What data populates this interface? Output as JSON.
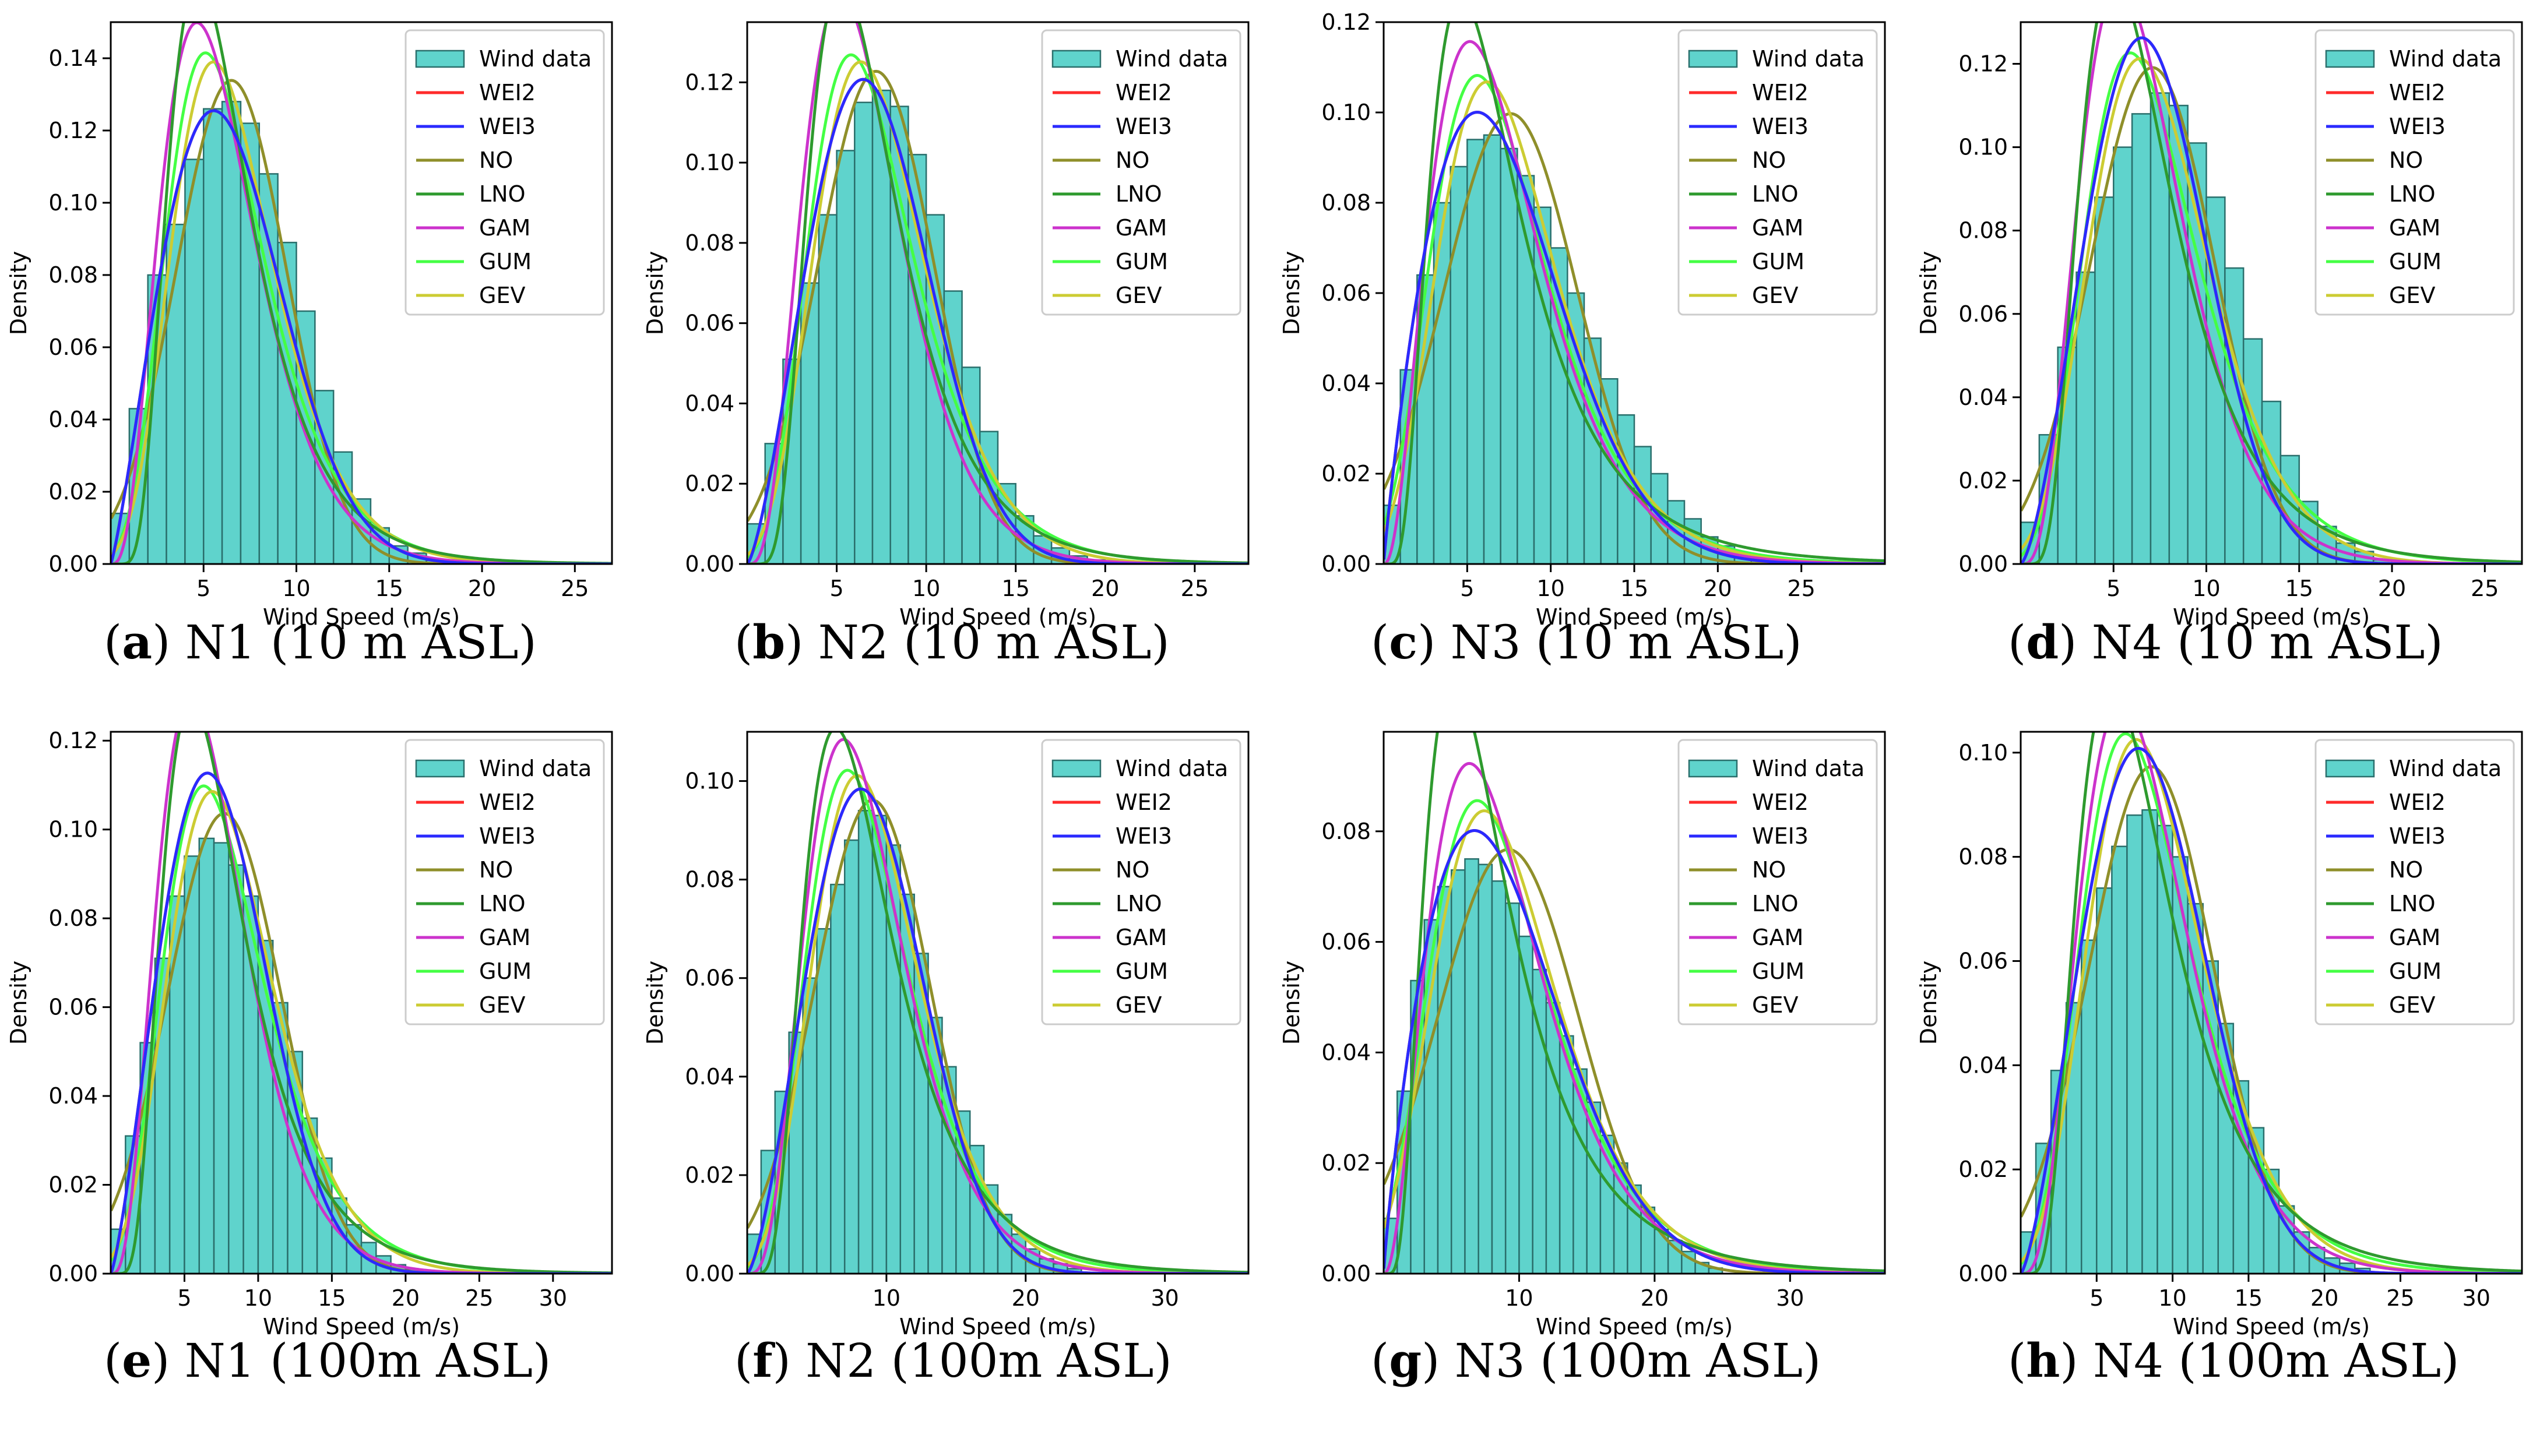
{
  "figure": {
    "xlabel": "Wind Speed (m/s)",
    "ylabel": "Density",
    "legend_entries": [
      "Wind data",
      "WEI2",
      "WEI3",
      "NO",
      "LNO",
      "GAM",
      "GUM",
      "GEV"
    ],
    "colors": {
      "hist_fill": "#5fd3cc",
      "hist_edge": "#2a6f6c",
      "WEI2": "#ff2a2a",
      "WEI3": "#2a2aff",
      "NO": "#8f8f2a",
      "LNO": "#2e9a2e",
      "GAM": "#cc33cc",
      "GUM": "#44ff44",
      "GEV": "#cccc33"
    }
  },
  "chart_data": [
    {
      "type": "bar",
      "panel_letter": "a",
      "caption_rest": " N1 (10 m ASL)",
      "xlim": [
        0,
        27
      ],
      "ylim": [
        0,
        0.15
      ],
      "xticks": [
        5,
        10,
        15,
        20,
        25
      ],
      "yticks": [
        "0.00",
        "0.02",
        "0.04",
        "0.06",
        "0.08",
        "0.10",
        "0.12",
        "0.14"
      ],
      "yvals": [
        0,
        0.02,
        0.04,
        0.06,
        0.08,
        0.1,
        0.12,
        0.14
      ],
      "legend": "top-right",
      "hist": {
        "bin_width": 1,
        "start": 0,
        "values": [
          0.014,
          0.043,
          0.08,
          0.094,
          0.112,
          0.126,
          0.128,
          0.122,
          0.108,
          0.089,
          0.07,
          0.048,
          0.031,
          0.018,
          0.01,
          0.005,
          0.003,
          0.001,
          0.0005
        ]
      },
      "curves": {
        "WEI2": {
          "dist": "weibull",
          "k": 2.2,
          "c": 7.3
        },
        "WEI3": {
          "dist": "weibull",
          "k": 2.2,
          "c": 7.3
        },
        "NO": {
          "dist": "normal",
          "mu": 6.5,
          "sigma": 2.98
        },
        "LNO": {
          "dist": "lognormal",
          "mu": 1.77,
          "sigma": 0.47
        },
        "GAM": {
          "dist": "gamma",
          "k": 4.2,
          "theta": 1.45
        },
        "GUM": {
          "dist": "gumbel",
          "mu": 5.1,
          "beta": 2.6
        },
        "GEV": {
          "dist": "gev",
          "mu": 5.4,
          "sigma": 2.65,
          "xi": -0.05
        }
      }
    },
    {
      "type": "bar",
      "panel_letter": "b",
      "caption_rest": " N2 (10 m ASL)",
      "xlim": [
        0,
        28
      ],
      "ylim": [
        0,
        0.135
      ],
      "xticks": [
        5,
        10,
        15,
        20,
        25
      ],
      "yticks": [
        "0.00",
        "0.02",
        "0.04",
        "0.06",
        "0.08",
        "0.10",
        "0.12"
      ],
      "yvals": [
        0,
        0.02,
        0.04,
        0.06,
        0.08,
        0.1,
        0.12
      ],
      "legend": "top-right",
      "hist": {
        "bin_width": 1,
        "start": 0,
        "values": [
          0.01,
          0.03,
          0.051,
          0.07,
          0.087,
          0.103,
          0.115,
          0.118,
          0.114,
          0.102,
          0.087,
          0.068,
          0.049,
          0.033,
          0.02,
          0.012,
          0.007,
          0.004,
          0.002,
          0.001
        ]
      },
      "curves": {
        "WEI2": {
          "dist": "weibull",
          "k": 2.4,
          "c": 8.1
        },
        "WEI3": {
          "dist": "weibull",
          "k": 2.4,
          "c": 8.1
        },
        "NO": {
          "dist": "normal",
          "mu": 7.2,
          "sigma": 3.25
        },
        "LNO": {
          "dist": "lognormal",
          "mu": 1.88,
          "sigma": 0.47
        },
        "GAM": {
          "dist": "gamma",
          "k": 4.6,
          "theta": 1.45
        },
        "GUM": {
          "dist": "gumbel",
          "mu": 5.8,
          "beta": 2.9
        },
        "GEV": {
          "dist": "gev",
          "mu": 6.1,
          "sigma": 2.95,
          "xi": -0.08
        }
      }
    },
    {
      "type": "bar",
      "panel_letter": "c",
      "caption_rest": " N3 (10 m ASL)",
      "xlim": [
        0,
        30
      ],
      "ylim": [
        0,
        0.12
      ],
      "xticks": [
        5,
        10,
        15,
        20,
        25
      ],
      "yticks": [
        "0.00",
        "0.02",
        "0.04",
        "0.06",
        "0.08",
        "0.10",
        "0.12"
      ],
      "yvals": [
        0,
        0.02,
        0.04,
        0.06,
        0.08,
        0.1,
        0.12
      ],
      "legend": "top-right",
      "hist": {
        "bin_width": 1,
        "start": 0,
        "values": [
          0.013,
          0.043,
          0.064,
          0.08,
          0.088,
          0.094,
          0.095,
          0.092,
          0.086,
          0.079,
          0.07,
          0.06,
          0.05,
          0.041,
          0.033,
          0.026,
          0.02,
          0.014,
          0.01,
          0.006,
          0.004,
          0.002,
          0.001
        ]
      },
      "curves": {
        "WEI2": {
          "dist": "weibull",
          "k": 1.9,
          "c": 8.3
        },
        "WEI3": {
          "dist": "weibull",
          "k": 1.9,
          "c": 8.3
        },
        "NO": {
          "dist": "normal",
          "mu": 7.6,
          "sigma": 4.0
        },
        "LNO": {
          "dist": "lognormal",
          "mu": 1.87,
          "sigma": 0.58
        },
        "GAM": {
          "dist": "gamma",
          "k": 3.4,
          "theta": 2.15
        },
        "GUM": {
          "dist": "gumbel",
          "mu": 5.6,
          "beta": 3.4
        },
        "GEV": {
          "dist": "gev",
          "mu": 6.0,
          "sigma": 3.45,
          "xi": -0.05
        }
      }
    },
    {
      "type": "bar",
      "panel_letter": "d",
      "caption_rest": " N4 (10 m ASL)",
      "xlim": [
        0,
        27
      ],
      "ylim": [
        0,
        0.13
      ],
      "xticks": [
        5,
        10,
        15,
        20,
        25
      ],
      "yticks": [
        "0.00",
        "0.02",
        "0.04",
        "0.06",
        "0.08",
        "0.10",
        "0.12"
      ],
      "yvals": [
        0,
        0.02,
        0.04,
        0.06,
        0.08,
        0.1,
        0.12
      ],
      "legend": "top-right",
      "hist": {
        "bin_width": 1,
        "start": 0,
        "values": [
          0.01,
          0.031,
          0.052,
          0.07,
          0.088,
          0.1,
          0.108,
          0.113,
          0.11,
          0.101,
          0.088,
          0.071,
          0.054,
          0.039,
          0.026,
          0.015,
          0.009,
          0.005,
          0.003,
          0.001
        ]
      },
      "curves": {
        "WEI2": {
          "dist": "weibull",
          "k": 2.5,
          "c": 8.0
        },
        "WEI3": {
          "dist": "weibull",
          "k": 2.5,
          "c": 8.0
        },
        "NO": {
          "dist": "normal",
          "mu": 7.1,
          "sigma": 3.35
        },
        "LNO": {
          "dist": "lognormal",
          "mu": 1.86,
          "sigma": 0.5
        },
        "GAM": {
          "dist": "gamma",
          "k": 4.6,
          "theta": 1.48
        },
        "GUM": {
          "dist": "gumbel",
          "mu": 5.9,
          "beta": 3.0
        },
        "GEV": {
          "dist": "gev",
          "mu": 6.1,
          "sigma": 3.05,
          "xi": -0.1
        }
      }
    },
    {
      "type": "bar",
      "panel_letter": "e",
      "caption_rest": " N1 (100m ASL)",
      "xlim": [
        0,
        34
      ],
      "ylim": [
        0,
        0.122
      ],
      "xticks": [
        5,
        10,
        15,
        20,
        25,
        30
      ],
      "yticks": [
        "0.00",
        "0.02",
        "0.04",
        "0.06",
        "0.08",
        "0.10",
        "0.12"
      ],
      "yvals": [
        0,
        0.02,
        0.04,
        0.06,
        0.08,
        0.1,
        0.12
      ],
      "legend": "top-right",
      "hist": {
        "bin_width": 1,
        "start": 0,
        "values": [
          0.01,
          0.031,
          0.052,
          0.071,
          0.085,
          0.094,
          0.098,
          0.097,
          0.092,
          0.085,
          0.075,
          0.061,
          0.05,
          0.035,
          0.026,
          0.017,
          0.011,
          0.007,
          0.004,
          0.002,
          0.001,
          0.0005
        ]
      },
      "curves": {
        "WEI2": {
          "dist": "weibull",
          "k": 2.3,
          "c": 8.4
        },
        "WEI3": {
          "dist": "weibull",
          "k": 2.3,
          "c": 8.4
        },
        "NO": {
          "dist": "normal",
          "mu": 7.7,
          "sigma": 3.85
        },
        "LNO": {
          "dist": "lognormal",
          "mu": 1.95,
          "sigma": 0.5
        },
        "GAM": {
          "dist": "gamma",
          "k": 4.3,
          "theta": 1.65
        },
        "GUM": {
          "dist": "gumbel",
          "mu": 6.3,
          "beta": 3.35
        },
        "GEV": {
          "dist": "gev",
          "mu": 6.6,
          "sigma": 3.4,
          "xi": -0.08
        }
      }
    },
    {
      "type": "bar",
      "panel_letter": "f",
      "caption_rest": " N2 (100m ASL)",
      "xlim": [
        0,
        36
      ],
      "ylim": [
        0,
        0.11
      ],
      "xticks": [
        10,
        20,
        30
      ],
      "yticks": [
        "0.00",
        "0.02",
        "0.04",
        "0.06",
        "0.08",
        "0.10"
      ],
      "yvals": [
        0,
        0.02,
        0.04,
        0.06,
        0.08,
        0.1
      ],
      "legend": "top-right",
      "hist": {
        "bin_width": 1,
        "start": 0,
        "values": [
          0.008,
          0.025,
          0.037,
          0.049,
          0.06,
          0.07,
          0.079,
          0.088,
          0.094,
          0.093,
          0.087,
          0.077,
          0.065,
          0.052,
          0.042,
          0.033,
          0.026,
          0.018,
          0.012,
          0.008,
          0.005,
          0.003,
          0.002,
          0.001
        ]
      },
      "curves": {
        "WEI2": {
          "dist": "weibull",
          "k": 2.45,
          "c": 10.1
        },
        "WEI3": {
          "dist": "weibull",
          "k": 2.45,
          "c": 10.1
        },
        "NO": {
          "dist": "normal",
          "mu": 9.0,
          "sigma": 4.15
        },
        "LNO": {
          "dist": "lognormal",
          "mu": 2.1,
          "sigma": 0.5
        },
        "GAM": {
          "dist": "gamma",
          "k": 4.7,
          "theta": 1.87
        },
        "GUM": {
          "dist": "gumbel",
          "mu": 7.2,
          "beta": 3.6
        },
        "GEV": {
          "dist": "gev",
          "mu": 7.6,
          "sigma": 3.65,
          "xi": -0.08
        }
      }
    },
    {
      "type": "bar",
      "panel_letter": "g",
      "caption_rest": " N3 (100m ASL)",
      "xlim": [
        0,
        37
      ],
      "ylim": [
        0,
        0.098
      ],
      "xticks": [
        10,
        20,
        30
      ],
      "yticks": [
        "0.00",
        "0.02",
        "0.04",
        "0.06",
        "0.08"
      ],
      "yvals": [
        0,
        0.02,
        0.04,
        0.06,
        0.08
      ],
      "legend": "top-right",
      "hist": {
        "bin_width": 1,
        "start": 0,
        "values": [
          0.01,
          0.033,
          0.053,
          0.064,
          0.07,
          0.073,
          0.075,
          0.074,
          0.071,
          0.067,
          0.061,
          0.055,
          0.049,
          0.043,
          0.037,
          0.031,
          0.025,
          0.02,
          0.016,
          0.012,
          0.008,
          0.006,
          0.004,
          0.002,
          0.001
        ]
      },
      "curves": {
        "WEI2": {
          "dist": "weibull",
          "k": 1.85,
          "c": 10.2
        },
        "WEI3": {
          "dist": "weibull",
          "k": 1.85,
          "c": 10.2
        },
        "NO": {
          "dist": "normal",
          "mu": 9.2,
          "sigma": 5.2
        },
        "LNO": {
          "dist": "lognormal",
          "mu": 2.0,
          "sigma": 0.6
        },
        "GAM": {
          "dist": "gamma",
          "k": 3.3,
          "theta": 2.75
        },
        "GUM": {
          "dist": "gumbel",
          "mu": 6.9,
          "beta": 4.3
        },
        "GEV": {
          "dist": "gev",
          "mu": 7.2,
          "sigma": 4.4,
          "xi": -0.05
        }
      }
    },
    {
      "type": "bar",
      "panel_letter": "h",
      "caption_rest": " N4 (100m ASL)",
      "xlim": [
        0,
        33
      ],
      "ylim": [
        0,
        0.104
      ],
      "xticks": [
        5,
        10,
        15,
        20,
        25,
        30
      ],
      "yticks": [
        "0.00",
        "0.02",
        "0.04",
        "0.06",
        "0.08",
        "0.10"
      ],
      "yvals": [
        0,
        0.02,
        0.04,
        0.06,
        0.08,
        0.1
      ],
      "legend": "top-right",
      "hist": {
        "bin_width": 1,
        "start": 0,
        "values": [
          0.008,
          0.025,
          0.039,
          0.052,
          0.064,
          0.074,
          0.082,
          0.088,
          0.089,
          0.086,
          0.08,
          0.071,
          0.06,
          0.048,
          0.037,
          0.028,
          0.02,
          0.013,
          0.008,
          0.005,
          0.003,
          0.002,
          0.001
        ]
      },
      "curves": {
        "WEI2": {
          "dist": "weibull",
          "k": 2.4,
          "c": 9.7
        },
        "WEI3": {
          "dist": "weibull",
          "k": 2.4,
          "c": 9.7
        },
        "NO": {
          "dist": "normal",
          "mu": 8.6,
          "sigma": 4.1
        },
        "LNO": {
          "dist": "lognormal",
          "mu": 2.05,
          "sigma": 0.52
        },
        "GAM": {
          "dist": "gamma",
          "k": 4.5,
          "theta": 1.9
        },
        "GUM": {
          "dist": "gumbel",
          "mu": 6.9,
          "beta": 3.55
        },
        "GEV": {
          "dist": "gev",
          "mu": 7.3,
          "sigma": 3.6,
          "xi": -0.08
        }
      }
    }
  ]
}
